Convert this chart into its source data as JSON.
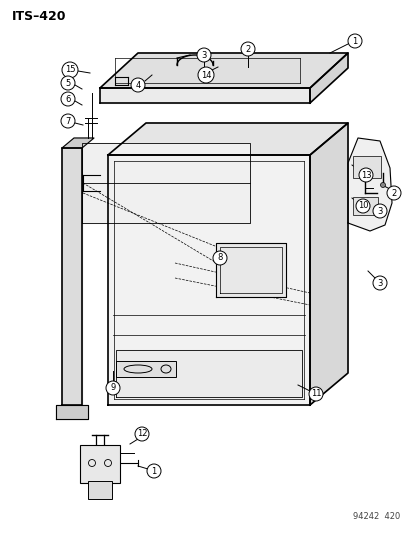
{
  "title": "ITS–420",
  "watermark": "94242  420",
  "bg_color": "#ffffff",
  "black": "#000000",
  "gray_light": "#e8e8e8",
  "gray_mid": "#d0d0d0"
}
